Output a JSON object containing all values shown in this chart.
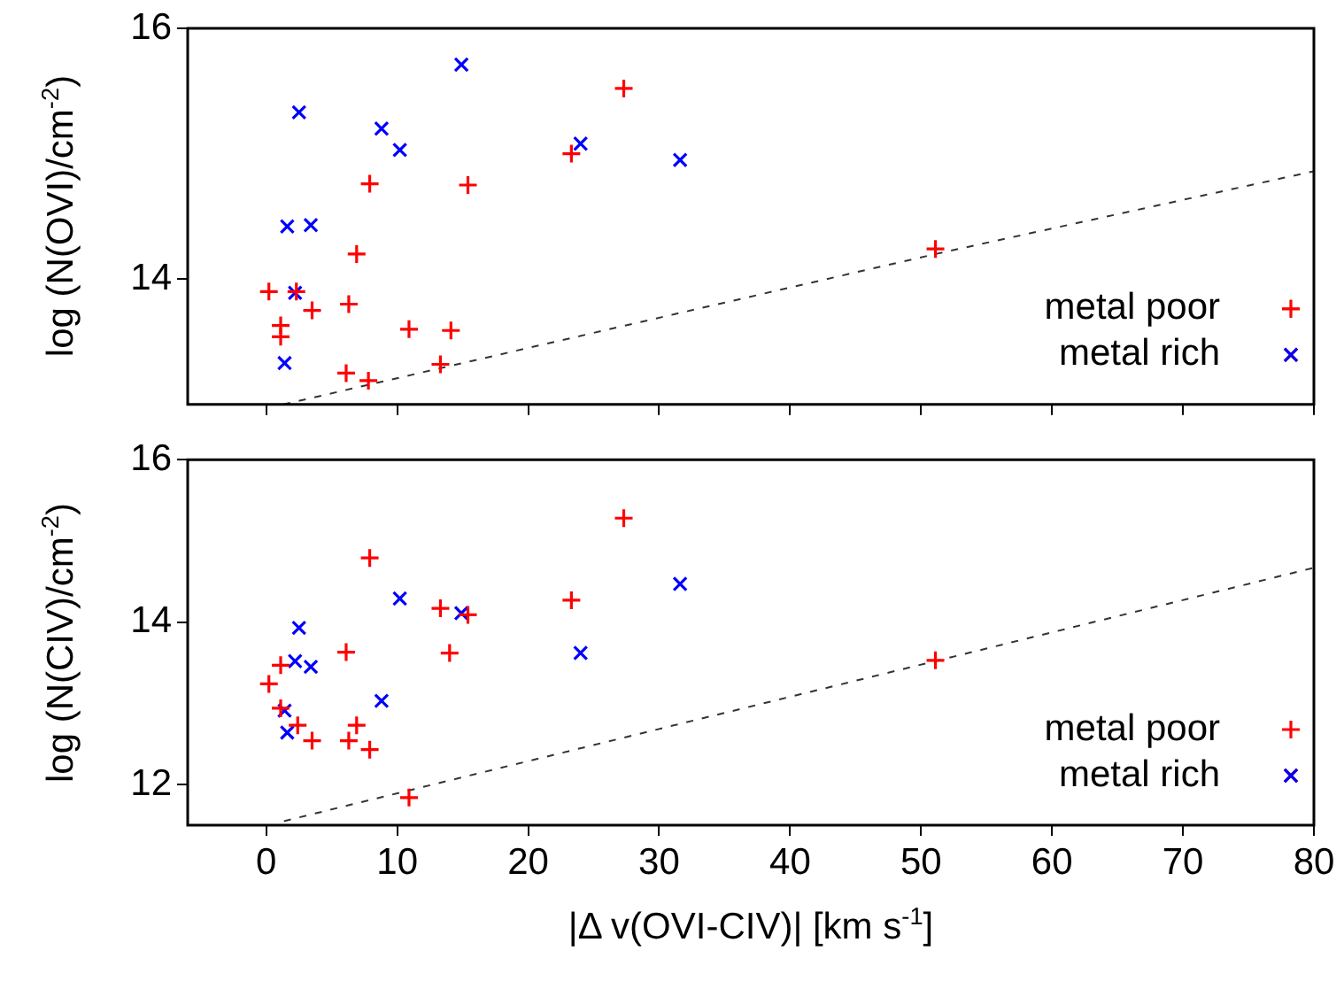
{
  "chart_data": [
    {
      "type": "scatter",
      "ylabel": "log (N(OVI)/cm$^{-2}$)",
      "xlim": [
        -6,
        80
      ],
      "xticks": [
        0,
        10,
        20,
        30,
        40,
        50,
        60,
        70,
        80
      ],
      "ylim": [
        13,
        16
      ],
      "yticks": [
        14,
        16
      ],
      "tick_labels": "y",
      "legend": "bottom right",
      "series": [
        {
          "name": "metal poor",
          "color": "#ff0000",
          "marker": "cross",
          "x": [
            27.3,
            23.3,
            7.9,
            15.4,
            6.9,
            0.2,
            2.3,
            3.5,
            6.3,
            1.1,
            1.1,
            10.9,
            14.1,
            6.1,
            7.8,
            13.3,
            51.1
          ],
          "values": [
            15.52,
            15.0,
            14.76,
            14.75,
            14.2,
            13.9,
            13.9,
            13.75,
            13.8,
            13.63,
            13.54,
            13.6,
            13.59,
            13.25,
            13.19,
            13.32,
            14.24
          ]
        },
        {
          "name": "metal rich",
          "color": "#0000ff",
          "marker": "x",
          "x": [
            14.9,
            2.5,
            8.8,
            10.2,
            24.0,
            31.6,
            1.6,
            3.4,
            2.2,
            1.4
          ],
          "values": [
            15.71,
            15.33,
            15.2,
            15.03,
            15.08,
            14.95,
            14.42,
            14.43,
            13.89,
            13.33
          ]
        },
        {
          "type": "line",
          "color": "#333333",
          "line_style": "dashed",
          "marker": "none",
          "x": [
            1.3,
            51.1,
            80
          ],
          "values": [
            13.0,
            14.2,
            14.86
          ]
        }
      ]
    },
    {
      "type": "scatter",
      "xlabel": "|Δ v(OVI-CIV)| [km s$^{-1}$]",
      "ylabel": "log (N(CIV)/cm$^{-2}$)",
      "xlim": [
        -6,
        80
      ],
      "xticks": [
        0,
        10,
        20,
        30,
        40,
        50,
        60,
        70,
        80
      ],
      "ylim": [
        11.5,
        16
      ],
      "yticks": [
        12,
        14,
        16
      ],
      "legend": "bottom right",
      "series": [
        {
          "name": "metal poor",
          "color": "#ff0000",
          "marker": "cross",
          "x": [
            27.3,
            7.9,
            13.3,
            15.4,
            23.3,
            6.1,
            14.0,
            1.1,
            0.2,
            1.1,
            2.4,
            6.9,
            3.5,
            6.3,
            7.9,
            10.9,
            51.1
          ],
          "values": [
            15.28,
            14.79,
            14.17,
            14.09,
            14.27,
            13.63,
            13.62,
            13.47,
            13.24,
            12.94,
            12.73,
            12.73,
            12.54,
            12.54,
            12.43,
            11.84,
            13.53
          ]
        },
        {
          "name": "metal rich",
          "color": "#0000ff",
          "marker": "x",
          "x": [
            31.6,
            10.2,
            14.9,
            2.5,
            24.0,
            2.2,
            3.4,
            8.8,
            1.4,
            1.6
          ],
          "values": [
            14.47,
            14.29,
            14.11,
            13.93,
            13.62,
            13.52,
            13.45,
            13.03,
            12.91,
            12.64
          ]
        },
        {
          "type": "line",
          "color": "#333333",
          "line_style": "dashed",
          "marker": "none",
          "x": [
            1.35,
            51.1,
            80
          ],
          "values": [
            11.55,
            13.52,
            14.67
          ]
        }
      ]
    }
  ]
}
